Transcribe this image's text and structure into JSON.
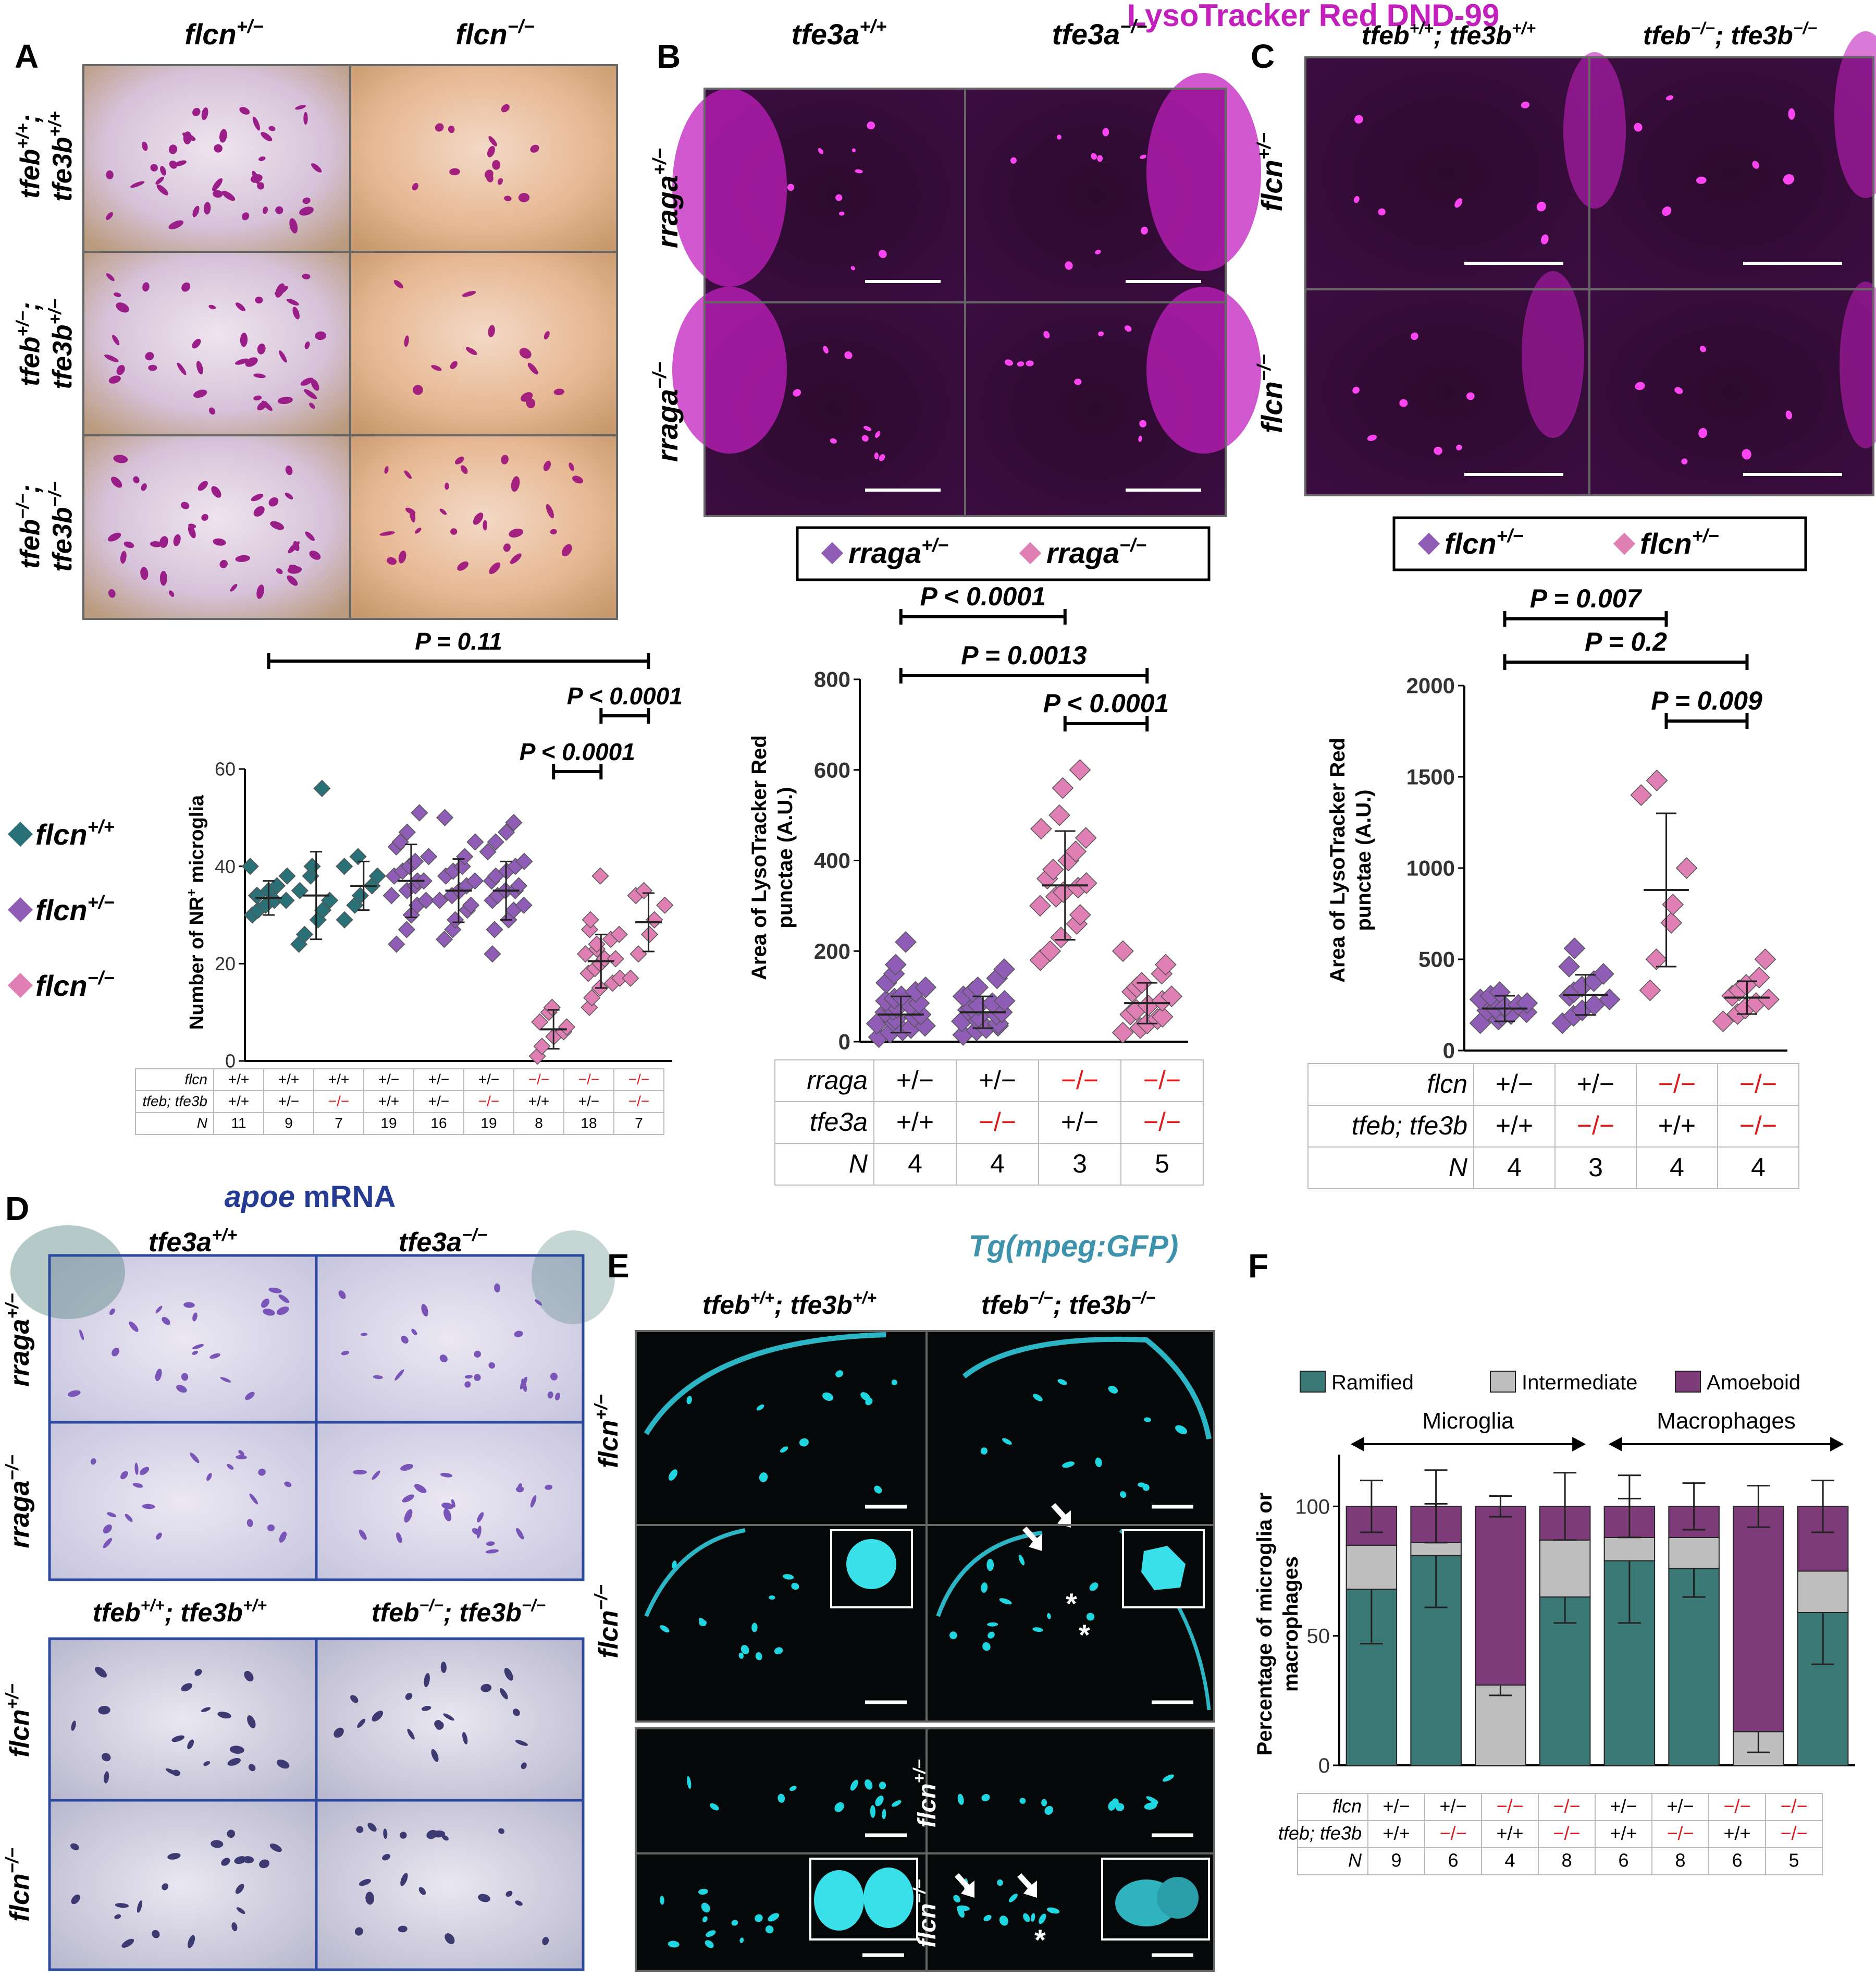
{
  "figure_title": "LysoTracker Red DND-99",
  "colors": {
    "teal": "#2a7177",
    "purple": "#8f5cb6",
    "pink": "#e07fb4",
    "red": "#e0191a",
    "magenta": "#c21fbd",
    "navy": "#253a93",
    "cyan": "#3c93ab",
    "ramified": "#3a7975",
    "intermediate": "#bebebe",
    "amoeboid": "#7e3b79"
  },
  "panel_A": {
    "letter": "A",
    "col_headers": [
      {
        "base": "flcn",
        "sup": "+/−"
      },
      {
        "base": "flcn",
        "sup": "−/−"
      }
    ],
    "row_headers": [
      {
        "l1": "tfeb",
        "s1": "+/+",
        "l2": "tfe3b",
        "s2": "+/+"
      },
      {
        "l1": "tfeb",
        "s1": "+/−",
        "l2": "tfe3b",
        "s2": "+/−"
      },
      {
        "l1": "tfeb",
        "s1": "−/−",
        "l2": "tfe3b",
        "s2": "−/−"
      }
    ],
    "legend": [
      {
        "base": "flcn",
        "sup": "+/+"
      },
      {
        "base": "flcn",
        "sup": "+/−"
      },
      {
        "base": "flcn",
        "sup": "−/−"
      }
    ],
    "stats": [
      {
        "label": "P = 0.11",
        "from": 1,
        "to": 9
      },
      {
        "label": "P < 0.0001",
        "from": 8,
        "to": 9
      },
      {
        "label": "P < 0.0001",
        "from": 7,
        "to": 8
      }
    ],
    "ylabel_main": "Number of NR",
    "ylabel_sup": "+",
    "ylabel_tail": " microglia",
    "table": {
      "row_labels": [
        "flcn",
        "tfeb; tfe3b",
        "N"
      ],
      "flcn": [
        "+/+",
        "+/+",
        "+/+",
        "+/−",
        "+/−",
        "+/−",
        "−/−",
        "−/−",
        "−/−"
      ],
      "tfeb_tfe3b": [
        "+/+",
        "+/−",
        "−/−",
        "+/+",
        "+/−",
        "−/−",
        "+/+",
        "+/−",
        "−/−"
      ],
      "N": [
        "11",
        "9",
        "7",
        "19",
        "16",
        "19",
        "8",
        "18",
        "7"
      ]
    }
  },
  "panel_B": {
    "letter": "B",
    "col_headers": [
      {
        "base": "tfe3a",
        "sup": "+/+"
      },
      {
        "base": "tfe3a",
        "sup": "−/−"
      }
    ],
    "row_headers": [
      {
        "base": "rraga",
        "sup": "+/−"
      },
      {
        "base": "rraga",
        "sup": "−/−"
      }
    ],
    "legend": [
      {
        "base": "rraga",
        "sup": "+/−"
      },
      {
        "base": "rraga",
        "sup": "−/−"
      }
    ],
    "stats": [
      {
        "label": "P < 0.0001",
        "from": 1,
        "to": 3
      },
      {
        "label": "P = 0.0013",
        "from": 1,
        "to": 4
      },
      {
        "label": "P < 0.0001",
        "from": 3,
        "to": 4
      }
    ],
    "ylabel1": "Area of LysoTracker Red",
    "ylabel2": "punctae (A.U.)",
    "table": {
      "row_labels": [
        "rraga",
        "tfe3a",
        "N"
      ],
      "rraga": [
        "+/−",
        "+/−",
        "−/−",
        "−/−"
      ],
      "tfe3a": [
        "+/+",
        "−/−",
        "+/−",
        "−/−"
      ],
      "N": [
        "4",
        "4",
        "3",
        "5"
      ]
    }
  },
  "panel_C": {
    "letter": "C",
    "col_headers": [
      {
        "a": "tfeb",
        "as": "+/+",
        "b": "tfe3b",
        "bs": "+/+"
      },
      {
        "a": "tfeb",
        "as": "−/−",
        "b": "tfe3b",
        "bs": "−/−"
      }
    ],
    "row_headers": [
      {
        "base": "flcn",
        "sup": "+/−"
      },
      {
        "base": "flcn",
        "sup": "−/−"
      }
    ],
    "legend": [
      {
        "base": "flcn",
        "sup": "+/−"
      },
      {
        "base": "flcn",
        "sup": "+/−"
      }
    ],
    "stats": [
      {
        "label": "P = 0.007",
        "from": 1,
        "to": 3
      },
      {
        "label": "P = 0.2",
        "from": 1,
        "to": 4
      },
      {
        "label": "P = 0.009",
        "from": 3,
        "to": 4
      }
    ],
    "ylabel1": "Area of LysoTracker Red",
    "ylabel2": "punctae (A.U.)",
    "table": {
      "row_labels": [
        "flcn",
        "tfeb; tfe3b",
        "N"
      ],
      "flcn": [
        "+/−",
        "+/−",
        "−/−",
        "−/−"
      ],
      "tfeb_tfe3b": [
        "+/+",
        "−/−",
        "+/+",
        "−/−"
      ],
      "N": [
        "4",
        "3",
        "4",
        "4"
      ]
    }
  },
  "panel_D": {
    "letter": "D",
    "title_it": "apoe",
    "title_rest": " mRNA",
    "top_cols": [
      {
        "base": "tfe3a",
        "sup": "+/+"
      },
      {
        "base": "tfe3a",
        "sup": "−/−"
      }
    ],
    "top_rows": [
      {
        "base": "rraga",
        "sup": "+/−"
      },
      {
        "base": "rraga",
        "sup": "−/−"
      }
    ],
    "bottom_cols": [
      {
        "a": "tfeb",
        "as": "+/+",
        "b": "tfe3b",
        "bs": "+/+"
      },
      {
        "a": "tfeb",
        "as": "−/−",
        "b": "tfe3b",
        "bs": "−/−"
      }
    ],
    "bottom_rows": [
      {
        "base": "flcn",
        "sup": "+/−"
      },
      {
        "base": "flcn",
        "sup": "−/−"
      }
    ]
  },
  "panel_E": {
    "letter": "E",
    "title": "Tg(mpeg:GFP)",
    "cols": [
      {
        "a": "tfeb",
        "as": "+/+",
        "b": "tfe3b",
        "bs": "+/+"
      },
      {
        "a": "tfeb",
        "as": "−/−",
        "b": "tfe3b",
        "bs": "−/−"
      }
    ],
    "rows": [
      {
        "base": "flcn",
        "sup": "+/−"
      },
      {
        "base": "flcn",
        "sup": "−/−"
      },
      {
        "base": "flcn",
        "sup": "+/−"
      },
      {
        "base": "flcn",
        "sup": "−/−"
      }
    ],
    "asterisk": "*"
  },
  "panel_F": {
    "letter": "F",
    "group_microglia": "Microglia",
    "group_macrophages": "Macrophages",
    "ylabel1": "Percentage of microglia or",
    "ylabel2": "macrophages",
    "table": {
      "row_labels": [
        "flcn",
        "tfeb; tfe3b",
        "N"
      ],
      "flcn": [
        "+/−",
        "+/−",
        "−/−",
        "−/−",
        "+/−",
        "+/−",
        "−/−",
        "−/−"
      ],
      "tfeb_tfe3b": [
        "+/+",
        "−/−",
        "+/+",
        "−/−",
        "+/+",
        "−/−",
        "+/+",
        "−/−"
      ],
      "N": [
        "9",
        "6",
        "4",
        "8",
        "6",
        "8",
        "6",
        "5"
      ]
    }
  },
  "chart_data": [
    {
      "id": "A",
      "type": "scatter",
      "ylim": [
        0,
        60
      ],
      "yticks": [
        0,
        20,
        40,
        60
      ],
      "ylabel": "Number of NR+ microglia",
      "groups": [
        {
          "genotype": "flcn+/+",
          "mean": 33.5,
          "sd": 3.5,
          "points": [
            30,
            31,
            32,
            33,
            33,
            34,
            34,
            35,
            36,
            38,
            40
          ]
        },
        {
          "genotype": "flcn+/+",
          "mean": 34,
          "sd": 9,
          "points": [
            24,
            26,
            29,
            31,
            33,
            35,
            38,
            40,
            56
          ]
        },
        {
          "genotype": "flcn+/+",
          "mean": 36,
          "sd": 5,
          "points": [
            29,
            32,
            34,
            36,
            38,
            40,
            42
          ]
        },
        {
          "genotype": "flcn+/−",
          "mean": 37,
          "sd": 7.5,
          "points": [
            24,
            27,
            30,
            32,
            33,
            34,
            35,
            36,
            37,
            37,
            38,
            39,
            40,
            41,
            42,
            44,
            45,
            47,
            51
          ]
        },
        {
          "genotype": "flcn+/−",
          "mean": 35,
          "sd": 6.5,
          "points": [
            25,
            27,
            29,
            31,
            32,
            33,
            34,
            35,
            36,
            37,
            38,
            39,
            40,
            42,
            45,
            50
          ]
        },
        {
          "genotype": "flcn+/−",
          "mean": 35,
          "sd": 6,
          "points": [
            22,
            27,
            29,
            31,
            32,
            33,
            34,
            35,
            35,
            36,
            37,
            38,
            39,
            40,
            41,
            43,
            45,
            47,
            49
          ]
        },
        {
          "genotype": "flcn−/−",
          "mean": 6.5,
          "sd": 4,
          "points": [
            1,
            3,
            5,
            6,
            7,
            8,
            10,
            11
          ]
        },
        {
          "genotype": "flcn−/−",
          "mean": 20.5,
          "sd": 5.5,
          "points": [
            11,
            13,
            15,
            16,
            17,
            18,
            19,
            20,
            21,
            21,
            22,
            23,
            24,
            25,
            26,
            27,
            29,
            38
          ]
        },
        {
          "genotype": "flcn−/−",
          "mean": 28.5,
          "sd": 6,
          "points": [
            17,
            22,
            26,
            29,
            32,
            34,
            35
          ]
        }
      ]
    },
    {
      "id": "B",
      "type": "scatter",
      "ylim": [
        0,
        800
      ],
      "yticks": [
        0,
        200,
        400,
        600,
        800
      ],
      "ylabel": "Area of LysoTracker Red punctae (A.U.)",
      "groups": [
        {
          "genotype": "rraga+/−",
          "mean": 60,
          "sd": 40,
          "points": [
            10,
            20,
            25,
            30,
            35,
            40,
            45,
            50,
            55,
            60,
            65,
            70,
            75,
            80,
            85,
            90,
            95,
            100,
            110,
            120,
            130,
            150,
            170,
            220
          ]
        },
        {
          "genotype": "rraga+/−",
          "mean": 65,
          "sd": 35,
          "points": [
            15,
            25,
            30,
            35,
            40,
            45,
            50,
            55,
            60,
            65,
            70,
            75,
            80,
            85,
            90,
            100,
            110,
            120,
            140,
            160
          ]
        },
        {
          "genotype": "rraga−/−",
          "mean": 345,
          "sd": 120,
          "points": [
            180,
            200,
            230,
            260,
            280,
            300,
            320,
            330,
            340,
            350,
            360,
            380,
            400,
            420,
            450,
            470,
            500,
            560,
            600
          ]
        },
        {
          "genotype": "rraga−/−",
          "mean": 85,
          "sd": 45,
          "points": [
            20,
            30,
            40,
            50,
            55,
            60,
            70,
            80,
            90,
            100,
            110,
            120,
            130,
            150,
            170,
            200
          ]
        }
      ]
    },
    {
      "id": "C",
      "type": "scatter",
      "ylim": [
        0,
        2000
      ],
      "yticks": [
        0,
        500,
        1000,
        1500,
        2000
      ],
      "ylabel": "Area of LysoTracker Red punctae (A.U.)",
      "groups": [
        {
          "genotype": "flcn+/−",
          "mean": 230,
          "sd": 70,
          "points": [
            150,
            170,
            190,
            200,
            210,
            220,
            230,
            240,
            250,
            260,
            280,
            300,
            320
          ]
        },
        {
          "genotype": "flcn+/−",
          "mean": 305,
          "sd": 110,
          "points": [
            150,
            190,
            220,
            250,
            280,
            300,
            320,
            350,
            380,
            420,
            460,
            560
          ]
        },
        {
          "genotype": "flcn−/−",
          "mean": 880,
          "sd": 420,
          "points": [
            330,
            500,
            700,
            800,
            1000,
            1400,
            1480
          ]
        },
        {
          "genotype": "flcn−/−",
          "mean": 290,
          "sd": 90,
          "points": [
            160,
            200,
            230,
            260,
            280,
            300,
            330,
            360,
            400,
            500
          ]
        }
      ]
    },
    {
      "id": "F",
      "type": "bar",
      "stacked": true,
      "ylim": [
        0,
        120
      ],
      "yticks": [
        0,
        50,
        100
      ],
      "ylabel": "Percentage of microglia or macrophages",
      "categories": [
        "1",
        "2",
        "3",
        "4",
        "5",
        "6",
        "7",
        "8"
      ],
      "series": [
        {
          "name": "Ramified",
          "values": [
            68,
            81,
            0,
            65,
            79,
            76,
            0,
            59
          ],
          "err": [
            21,
            20,
            0,
            10,
            24,
            11,
            0,
            20
          ]
        },
        {
          "name": "Intermediate",
          "values": [
            17,
            5,
            31,
            22,
            9,
            12,
            13,
            16
          ],
          "err": [
            0,
            0,
            4,
            0,
            0,
            0,
            8,
            0
          ]
        },
        {
          "name": "Amoeboid",
          "values": [
            15,
            14,
            69,
            13,
            12,
            12,
            87,
            25
          ],
          "err": [
            10,
            14,
            4,
            13,
            12,
            9,
            8,
            10
          ]
        }
      ]
    }
  ]
}
